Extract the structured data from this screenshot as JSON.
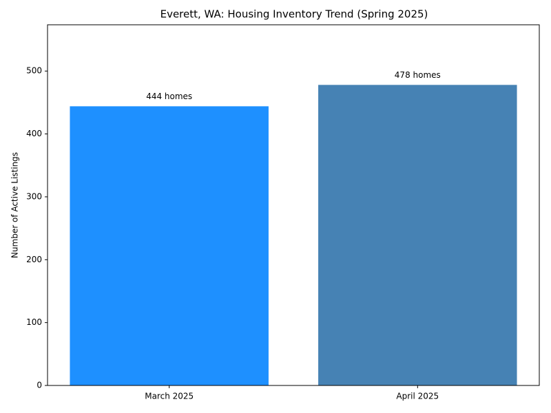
{
  "chart_data": {
    "type": "bar",
    "title": "Everett, WA: Housing Inventory Trend (Spring 2025)",
    "y_label": "Number of Active Listings",
    "categories": [
      "March 2025",
      "April 2025"
    ],
    "values": [
      444,
      478
    ],
    "value_labels": [
      "444 homes",
      "478 homes"
    ],
    "colors": [
      "#1e90ff",
      "#4682b4"
    ],
    "ylim": [
      0,
      573.6
    ],
    "yticks": [
      0,
      100,
      200,
      300,
      400,
      500
    ],
    "grid": false
  }
}
